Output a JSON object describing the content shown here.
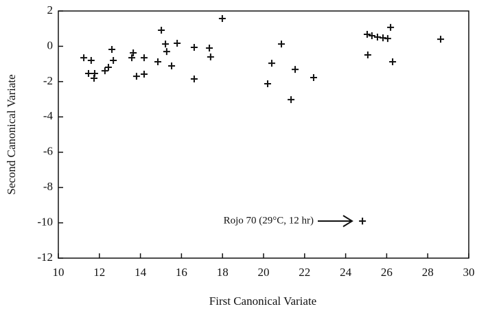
{
  "chart_data": {
    "type": "scatter",
    "xlabel": "First Canonical Variate",
    "ylabel": "Second Canonical Variate",
    "series": [
      {
        "color": "#111111",
        "x": [
          11.24,
          11.6,
          11.47,
          11.77,
          11.74,
          12.27,
          12.44,
          12.61,
          12.68,
          13.58,
          13.65,
          13.81,
          14.18,
          14.18,
          14.85,
          15.02,
          15.22,
          15.28,
          15.52,
          15.79,
          16.62,
          16.62,
          17.36,
          17.42,
          17.99,
          20.2,
          20.4,
          20.87,
          21.54,
          21.34,
          22.44,
          25.05,
          25.08,
          25.28,
          25.55,
          25.82,
          26.05,
          26.19,
          26.29,
          28.63,
          24.82
        ],
        "values": [
          -0.65,
          -0.8,
          -1.54,
          -1.54,
          -1.81,
          -1.39,
          -1.19,
          -0.18,
          -0.8,
          -0.65,
          -0.37,
          -1.7,
          -0.65,
          -1.58,
          -0.88,
          0.91,
          0.13,
          -0.3,
          -1.11,
          0.17,
          -0.06,
          -1.85,
          -0.1,
          -0.6,
          1.57,
          -2.12,
          -0.96,
          0.13,
          -1.31,
          -3.02,
          -1.77,
          0.68,
          -0.49,
          0.6,
          0.52,
          0.48,
          0.44,
          1.07,
          -0.88,
          0.4,
          -9.9
        ]
      }
    ],
    "annotation": "Rojo 70 (29°C, 12 hr)",
    "xlim": [
      10,
      30
    ],
    "xticks": [
      10,
      12,
      14,
      16,
      18,
      20,
      22,
      24,
      26,
      28,
      30
    ],
    "ylim": [
      -12,
      2
    ],
    "yticks": [
      -12,
      -10,
      -8,
      -6,
      -4,
      -2,
      0,
      2
    ],
    "grid": false
  }
}
